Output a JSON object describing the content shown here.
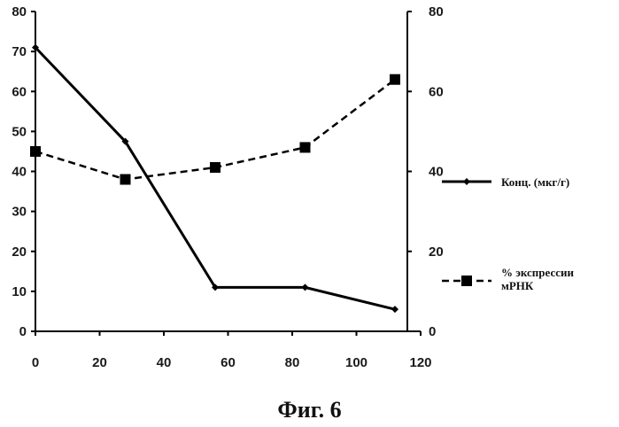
{
  "caption": "Фиг. 6",
  "chart_data": {
    "type": "line",
    "x": [
      0,
      28,
      56,
      84,
      112
    ],
    "xticks": [
      "0",
      "20",
      "40",
      "60",
      "80",
      "100",
      "120"
    ],
    "xlim": [
      0,
      120
    ],
    "yticks_left": [
      "0",
      "10",
      "20",
      "30",
      "40",
      "50",
      "60",
      "70",
      "80"
    ],
    "ylim_left": [
      0,
      80
    ],
    "yticks_right": [
      "0",
      "20",
      "40",
      "60",
      "80"
    ],
    "ylim_right": [
      0,
      80
    ],
    "grid": false,
    "legend_position": "right",
    "series": [
      {
        "name": "Конц. (мкг/г)",
        "axis": "left",
        "style": "solid",
        "marker": "diamond",
        "color": "#000000",
        "values": [
          71,
          47.5,
          11,
          11,
          5.5
        ]
      },
      {
        "name": "% экспрессии мРНК",
        "axis": "right",
        "style": "dashed",
        "marker": "square",
        "color": "#000000",
        "values": [
          45,
          38,
          41,
          46,
          63
        ]
      }
    ]
  }
}
